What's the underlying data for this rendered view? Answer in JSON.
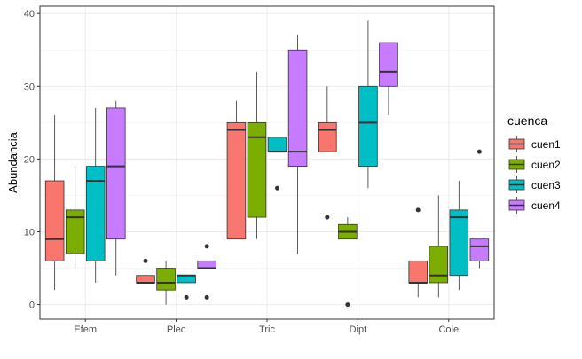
{
  "chart_data": {
    "type": "boxplot",
    "xlabel": "",
    "ylabel": "Abundancia",
    "ylim": [
      -2,
      41
    ],
    "yticks": [
      0,
      10,
      20,
      30,
      40
    ],
    "grid": true,
    "legend": {
      "title": "cuenca",
      "position": "right"
    },
    "categories": [
      "Efem",
      "Plec",
      "Tric",
      "Dipt",
      "Cole"
    ],
    "series": [
      {
        "name": "cuen1",
        "color": "#F8766D",
        "boxes": [
          {
            "min": 2,
            "q1": 6,
            "median": 9,
            "q3": 17,
            "max": 26,
            "outliers": []
          },
          {
            "min": 3,
            "q1": 3,
            "median": 3,
            "q3": 4,
            "max": 4,
            "outliers": [
              6
            ]
          },
          {
            "min": 9,
            "q1": 9,
            "median": 24,
            "q3": 25,
            "max": 28,
            "outliers": []
          },
          {
            "min": 21,
            "q1": 21,
            "median": 24,
            "q3": 25,
            "max": 30,
            "outliers": [
              12
            ]
          },
          {
            "min": 1,
            "q1": 3,
            "median": 3,
            "q3": 6,
            "max": 6,
            "outliers": [
              13
            ]
          }
        ]
      },
      {
        "name": "cuen2",
        "color": "#7CAE00",
        "boxes": [
          {
            "min": 5,
            "q1": 7,
            "median": 12,
            "q3": 13,
            "max": 19,
            "outliers": []
          },
          {
            "min": 0,
            "q1": 2,
            "median": 3,
            "q3": 5,
            "max": 6,
            "outliers": []
          },
          {
            "min": 9,
            "q1": 12,
            "median": 23,
            "q3": 25,
            "max": 32,
            "outliers": []
          },
          {
            "min": 9,
            "q1": 9,
            "median": 10,
            "q3": 11,
            "max": 12,
            "outliers": [
              0
            ]
          },
          {
            "min": 1,
            "q1": 3,
            "median": 4,
            "q3": 8,
            "max": 15,
            "outliers": []
          }
        ]
      },
      {
        "name": "cuen3",
        "color": "#00BFC4",
        "boxes": [
          {
            "min": 3,
            "q1": 6,
            "median": 17,
            "q3": 19,
            "max": 27,
            "outliers": []
          },
          {
            "min": 3,
            "q1": 3,
            "median": 4,
            "q3": 4,
            "max": 4,
            "outliers": [
              1
            ]
          },
          {
            "min": 21,
            "q1": 21,
            "median": 21,
            "q3": 23,
            "max": 23,
            "outliers": [
              16
            ]
          },
          {
            "min": 16,
            "q1": 19,
            "median": 25,
            "q3": 30,
            "max": 39,
            "outliers": []
          },
          {
            "min": 2,
            "q1": 4,
            "median": 12,
            "q3": 13,
            "max": 17,
            "outliers": []
          }
        ]
      },
      {
        "name": "cuen4",
        "color": "#C77CFF",
        "boxes": [
          {
            "min": 4,
            "q1": 9,
            "median": 19,
            "q3": 27,
            "max": 28,
            "outliers": []
          },
          {
            "min": 5,
            "q1": 5,
            "median": 5,
            "q3": 6,
            "max": 6,
            "outliers": [
              8,
              1
            ]
          },
          {
            "min": 7,
            "q1": 19,
            "median": 21,
            "q3": 35,
            "max": 37,
            "outliers": []
          },
          {
            "min": 26,
            "q1": 30,
            "median": 32,
            "q3": 36,
            "max": 36,
            "outliers": []
          },
          {
            "min": 5,
            "q1": 6,
            "median": 8,
            "q3": 9,
            "max": 9,
            "outliers": [
              21
            ]
          }
        ]
      }
    ]
  }
}
